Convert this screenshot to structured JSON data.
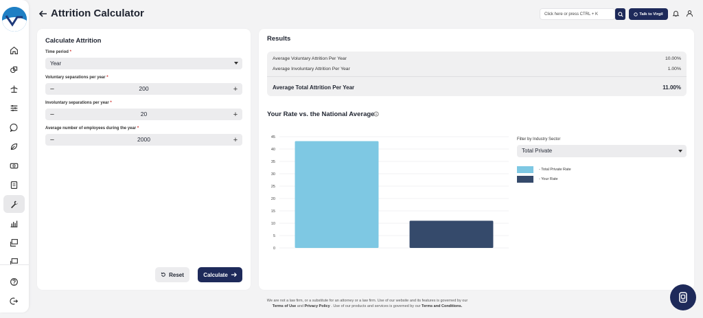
{
  "app": {
    "page_title": "Attrition Calculator",
    "search_placeholder": "Click here or press CTRL + K",
    "talk_button": "Talk to Virgil"
  },
  "sidebar": {
    "items": [
      {
        "icon": "home-icon"
      },
      {
        "icon": "shapes-icon"
      },
      {
        "icon": "scale-icon"
      },
      {
        "icon": "sliders-icon"
      },
      {
        "icon": "chat-bubble-icon"
      },
      {
        "icon": "leaf-icon"
      },
      {
        "icon": "money-icon"
      },
      {
        "icon": "document-icon"
      },
      {
        "icon": "wrench-icon",
        "active": true
      },
      {
        "icon": "bar-chart-icon"
      },
      {
        "icon": "presentation-icon"
      },
      {
        "icon": "presentation-alt-icon"
      }
    ],
    "bottom": [
      {
        "icon": "help-icon"
      },
      {
        "icon": "logout-icon"
      }
    ]
  },
  "form": {
    "title": "Calculate Attrition",
    "time_period": {
      "label": "Time period",
      "required": "*",
      "value": "Year"
    },
    "voluntary": {
      "label": "Voluntary separations per year",
      "required": "*",
      "value": "200"
    },
    "involuntary": {
      "label": "Involuntary separations per year",
      "required": "*",
      "value": "20"
    },
    "employees": {
      "label": "Average number of employees during the year",
      "required": "*",
      "value": "2000"
    },
    "minus": "−",
    "plus": "+",
    "reset_label": "Reset",
    "calculate_label": "Calculate"
  },
  "results": {
    "title": "Results",
    "rows": [
      {
        "label": "Average Voluntary Attrition Per Year",
        "value": "10.00%"
      },
      {
        "label": "Average Involuntary Attrition Per Year",
        "value": "1.00%"
      }
    ],
    "total": {
      "label": "Average Total Attrition Per Year",
      "value": "11.00%"
    }
  },
  "comparison": {
    "title": "Your Rate vs. the National Average",
    "filter_label": "Filter by Industry Sector",
    "filter_value": "Total Private",
    "legend": [
      {
        "label": "- Total Private Rate",
        "color": "#7ec8e3"
      },
      {
        "label": "- Your Rate",
        "color": "#354a6b"
      }
    ]
  },
  "chart_data": {
    "type": "bar",
    "categories": [
      "Total Private Rate",
      "Your Rate"
    ],
    "values": [
      43.2,
      11
    ],
    "colors": [
      "#7ec8e3",
      "#354a6b"
    ],
    "ylim": [
      0,
      45
    ],
    "yticks": [
      0,
      5,
      10,
      15,
      20,
      25,
      30,
      35,
      40,
      45
    ],
    "grid": true,
    "legend_position": "right"
  },
  "footer": {
    "line1": "We are not a law firm, or a substitute for an attorney or a law firm. Use of our website and its features is governed by our",
    "terms_of_use": "Terms of Use",
    "and": "and",
    "privacy_policy": "Privacy Policy",
    "line2_mid": ". Use of our products and services is governed by our",
    "terms_conditions": "Terms and Conditions."
  }
}
